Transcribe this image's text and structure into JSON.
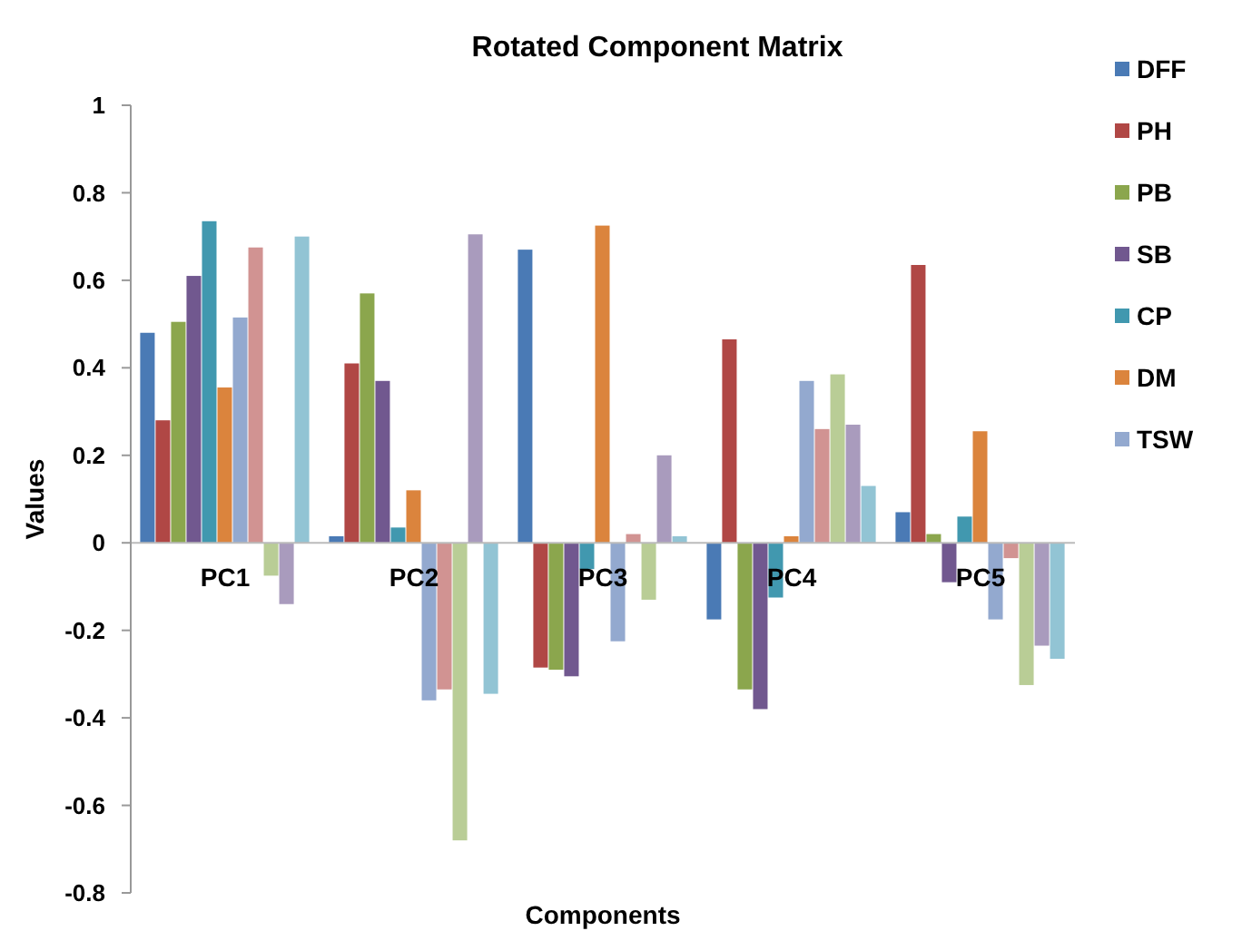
{
  "chart_data": {
    "type": "bar",
    "title": "Rotated Component Matrix",
    "xlabel": "Components",
    "ylabel": "Values",
    "categories": [
      "PC1",
      "PC2",
      "PC3",
      "PC4",
      "PC5"
    ],
    "ylim": [
      -0.8,
      1
    ],
    "yticks": [
      -0.8,
      -0.6,
      -0.4,
      -0.2,
      0,
      0.2,
      0.4,
      0.6,
      0.8,
      1
    ],
    "grid": false,
    "legend": "top right",
    "series": [
      {
        "name": "DFF",
        "color": "#4a7ab5",
        "values": [
          0.48,
          0.015,
          0.67,
          -0.175,
          0.07
        ]
      },
      {
        "name": "PH",
        "color": "#b04745",
        "values": [
          0.28,
          0.41,
          -0.285,
          0.465,
          0.635
        ]
      },
      {
        "name": "PB",
        "color": "#8ba64d",
        "values": [
          0.505,
          0.57,
          -0.29,
          -0.335,
          0.02
        ]
      },
      {
        "name": "SB",
        "color": "#71588f",
        "values": [
          0.61,
          0.37,
          -0.305,
          -0.38,
          -0.09
        ]
      },
      {
        "name": "CP",
        "color": "#4198af",
        "values": [
          0.735,
          0.035,
          -0.06,
          -0.125,
          0.06
        ]
      },
      {
        "name": "DM",
        "color": "#db843d",
        "values": [
          0.355,
          0.12,
          0.725,
          0.015,
          0.255
        ]
      },
      {
        "name": "TSW",
        "color": "#93a9cf",
        "values": [
          0.515,
          -0.36,
          -0.225,
          0.37,
          -0.175
        ]
      },
      {
        "color": "#d19392",
        "values": [
          0.675,
          -0.335,
          0.02,
          0.26,
          -0.035
        ]
      },
      {
        "color": "#b9cd96",
        "values": [
          -0.075,
          -0.68,
          -0.13,
          0.385,
          -0.325
        ]
      },
      {
        "color": "#a99bbd",
        "values": [
          -0.14,
          0.705,
          0.2,
          0.27,
          -0.235
        ]
      },
      {
        "color": "#92c4d4",
        "values": [
          0.7,
          -0.345,
          0.015,
          0.13,
          -0.265
        ]
      }
    ]
  }
}
